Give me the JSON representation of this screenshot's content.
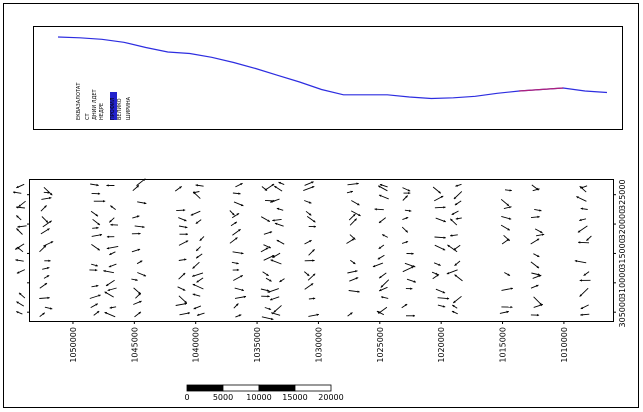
{
  "layout_title": "",
  "profile_panel": {
    "legend": [
      {
        "label": "ЕКВАЗАЛОТАТ",
        "color": "#000000"
      },
      {
        "label": "СТ",
        "color": "#000000"
      },
      {
        "label": "ДНИИ ЛДЕТ",
        "color": "#000000"
      },
      {
        "label": "НЕДРЕ",
        "color": "#000000"
      },
      {
        "label": "ПРОФИЛ",
        "color": "#2222cc"
      },
      {
        "label": "ВЕЛИКО",
        "color": "#000000"
      },
      {
        "label": "ШИРИНА",
        "color": "#000000"
      }
    ]
  },
  "chart_data": [
    {
      "type": "line",
      "name": "profile",
      "x": [
        0,
        4,
        8,
        12,
        16,
        20,
        24,
        28,
        32,
        36,
        40,
        44,
        48,
        52,
        56,
        60,
        64,
        68,
        72,
        76,
        80,
        84,
        88,
        92,
        96,
        100
      ],
      "y": [
        100,
        99,
        97,
        93,
        86,
        80,
        78,
        73,
        66,
        58,
        49,
        40,
        30,
        23,
        23,
        23,
        20,
        18,
        19,
        21,
        25,
        28,
        30,
        32,
        28,
        26
      ],
      "xlim": [
        0,
        100
      ],
      "ylim": [
        0,
        100
      ],
      "colors": {
        "line": "#2d2de0",
        "highlight": "#b0207a"
      }
    },
    {
      "type": "scatter",
      "name": "vector-field",
      "x_ticks": [
        "1050000",
        "1045000",
        "1040000",
        "1035000",
        "1030000",
        "1025000",
        "1020000",
        "1015000",
        "1010000"
      ],
      "y_ticks": [
        "325000",
        "320000",
        "315000",
        "310000",
        "305000"
      ],
      "xlim": [
        1053500,
        1006000
      ],
      "ylim": [
        303500,
        327500
      ],
      "columns": [
        1054000,
        1052500,
        1048500,
        1046500,
        1045000,
        1041500,
        1039500,
        1037000,
        1034500,
        1033000,
        1031000,
        1027500,
        1024500,
        1023000,
        1020500,
        1018500,
        1015000,
        1012500,
        1008000
      ],
      "rows": [
        326500,
        325500,
        324000,
        322500,
        321000,
        319500,
        318000,
        316500,
        315000,
        313500,
        312000,
        310500,
        309000,
        307500,
        306000,
        304500
      ]
    }
  ],
  "scale_bar": {
    "labels": [
      "0",
      "5000",
      "10000",
      "15000",
      "20000"
    ],
    "segments": 4
  }
}
